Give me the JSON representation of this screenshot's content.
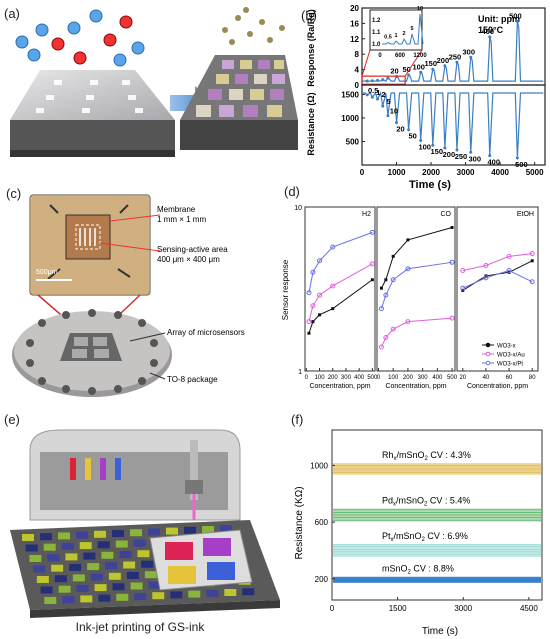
{
  "panels": {
    "a": {
      "label": "(a)"
    },
    "b": {
      "label": "(b)"
    },
    "c": {
      "label": "(c)"
    },
    "d": {
      "label": "(d)"
    },
    "e": {
      "label": "(e)"
    },
    "f": {
      "label": "(f)"
    }
  },
  "panel_c": {
    "membrane_line1": "Membrane",
    "membrane_line2": "1 mm × 1 mm",
    "sensing_line1": "Sensing-active area",
    "sensing_line2": "400 μm × 400 μm",
    "scale_bar": "500μm",
    "array_label": "Array of microsensors",
    "package_label": "TO-8 package"
  },
  "panel_e": {
    "caption": "Ink-jet printing of GS-ink"
  },
  "chart_data": [
    {
      "id": "b",
      "type": "line",
      "xlabel": "Time (s)",
      "xlim": [
        0,
        5300
      ],
      "xticks": [
        "0",
        "1000",
        "2000",
        "3000",
        "4000",
        "5000"
      ],
      "top": {
        "ylabel": "Response (Ra/Rg)",
        "yticks": [
          "0",
          "4",
          "8",
          "12",
          "16",
          "20"
        ],
        "ylim": [
          0,
          20
        ],
        "unit_text": "Unit: ppm",
        "temp_text": "150°C",
        "concentrations": [
          "0.5",
          "1",
          "2",
          "5",
          "10",
          "20",
          "50",
          "100",
          "150",
          "200",
          "250",
          "300",
          "400",
          "500"
        ],
        "peaks": [
          1.05,
          1.1,
          1.2,
          1.4,
          1.8,
          2.2,
          2.6,
          3.3,
          4.1,
          5.0,
          5.9,
          7.2,
          12.5,
          16.5
        ],
        "times": [
          150,
          300,
          450,
          600,
          750,
          1000,
          1350,
          1700,
          2050,
          2400,
          2750,
          3150,
          3700,
          4500
        ],
        "inset": {
          "yticks": [
            "1.0",
            "1.1",
            "1.2"
          ],
          "xticks": [
            "0",
            "600",
            "1200"
          ],
          "concentrations": [
            "0.5",
            "1",
            "2",
            "5",
            "10"
          ]
        }
      },
      "bottom": {
        "ylabel": "Resistance (Ω)",
        "yticks": [
          "500",
          "1000",
          "1500"
        ],
        "ylim": [
          0,
          1700
        ],
        "baseline": 1530,
        "concentrations": [
          "0.5",
          "1",
          "2",
          "5",
          "10",
          "20",
          "50",
          "100",
          "150",
          "200",
          "250",
          "300",
          "400",
          "500"
        ],
        "minima": [
          1490,
          1440,
          1400,
          1250,
          1050,
          900,
          750,
          520,
          420,
          360,
          320,
          270,
          200,
          150
        ]
      }
    },
    {
      "id": "d",
      "type": "line",
      "ylabel": "Sensor response",
      "ylim": [
        1,
        10
      ],
      "yscale": "log",
      "yticks": [
        "1",
        "10"
      ],
      "legend": [
        "WO3-x",
        "WO3-x/Au",
        "WO3-x/Pt"
      ],
      "legend_position": "bottom-right",
      "subplots": [
        {
          "title": "H2",
          "xlabel": "Concentration, ppm",
          "xticks": [
            "0",
            "100",
            "200",
            "300",
            "400",
            "500"
          ],
          "x": [
            20,
            50,
            100,
            200,
            500
          ],
          "series": [
            {
              "name": "WO3-x",
              "color": "#111111",
              "values": [
                1.7,
                2.0,
                2.2,
                2.4,
                3.6
              ]
            },
            {
              "name": "WO3-x/Au",
              "color": "#e060e0",
              "values": [
                2.0,
                2.5,
                2.9,
                3.3,
                4.5
              ]
            },
            {
              "name": "WO3-x/Pt",
              "color": "#6a70e8",
              "values": [
                3.0,
                4.0,
                4.7,
                5.7,
                7.0
              ]
            }
          ]
        },
        {
          "title": "CO",
          "xlabel": "Concentration, ppm",
          "xticks": [
            "0",
            "100",
            "200",
            "300",
            "400",
            "500"
          ],
          "x": [
            20,
            50,
            100,
            200,
            500
          ],
          "series": [
            {
              "name": "WO3-x",
              "color": "#111111",
              "values": [
                3.2,
                3.6,
                5.0,
                6.3,
                7.5
              ]
            },
            {
              "name": "WO3-x/Au",
              "color": "#e060e0",
              "values": [
                1.4,
                1.6,
                1.8,
                2.0,
                2.1
              ]
            },
            {
              "name": "WO3-x/Pt",
              "color": "#6a70e8",
              "values": [
                2.4,
                2.9,
                3.6,
                4.2,
                4.6
              ]
            }
          ]
        },
        {
          "title": "EtOH",
          "xlabel": "Concentration, ppm",
          "xticks": [
            "20",
            "40",
            "60",
            "80"
          ],
          "x": [
            20,
            40,
            60,
            80
          ],
          "series": [
            {
              "name": "WO3-x",
              "color": "#111111",
              "values": [
                3.1,
                3.8,
                4.0,
                4.7
              ]
            },
            {
              "name": "WO3-x/Au",
              "color": "#e060e0",
              "values": [
                4.1,
                4.4,
                5.0,
                5.2
              ]
            },
            {
              "name": "WO3-x/Pt",
              "color": "#6a70e8",
              "values": [
                3.2,
                3.7,
                4.1,
                3.5
              ]
            }
          ]
        }
      ]
    },
    {
      "id": "f",
      "type": "line",
      "xlabel": "Time (s)",
      "ylabel": "Resistance (KΩ)",
      "xticks": [
        "0",
        "1500",
        "3000",
        "4500"
      ],
      "xlim": [
        0,
        4800
      ],
      "yticks": [
        "200",
        "600",
        "1000"
      ],
      "ylim": [
        50,
        1250
      ],
      "series": [
        {
          "name": "Rhx/mSnO2",
          "label": "Rh",
          "sub": "x",
          "tail": "/mSnO",
          "sub2": "2",
          "cv": "CV : 4.3%",
          "color": "#e0b84a",
          "levels": [
            940,
            985,
            1010
          ]
        },
        {
          "name": "Pdx/mSnO2",
          "label": "Pd",
          "sub": "x",
          "tail": "/mSnO",
          "sub2": "2",
          "cv": "CV : 5.4%",
          "color": "#4faf5a",
          "levels": [
            610,
            650,
            690
          ]
        },
        {
          "name": "Ptx/mSnO2",
          "label": "Pt",
          "sub": "x",
          "tail": "/mSnO",
          "sub2": "2",
          "cv": "CV : 6.9%",
          "color": "#8fd6d0",
          "levels": [
            360,
            400,
            440
          ]
        },
        {
          "name": "mSnO2",
          "label": "mSnO",
          "sub": "2",
          "tail": "",
          "sub2": "",
          "cv": "CV : 8.8%",
          "color": "#2a78c8",
          "levels": [
            175,
            195,
            210
          ]
        }
      ]
    }
  ]
}
